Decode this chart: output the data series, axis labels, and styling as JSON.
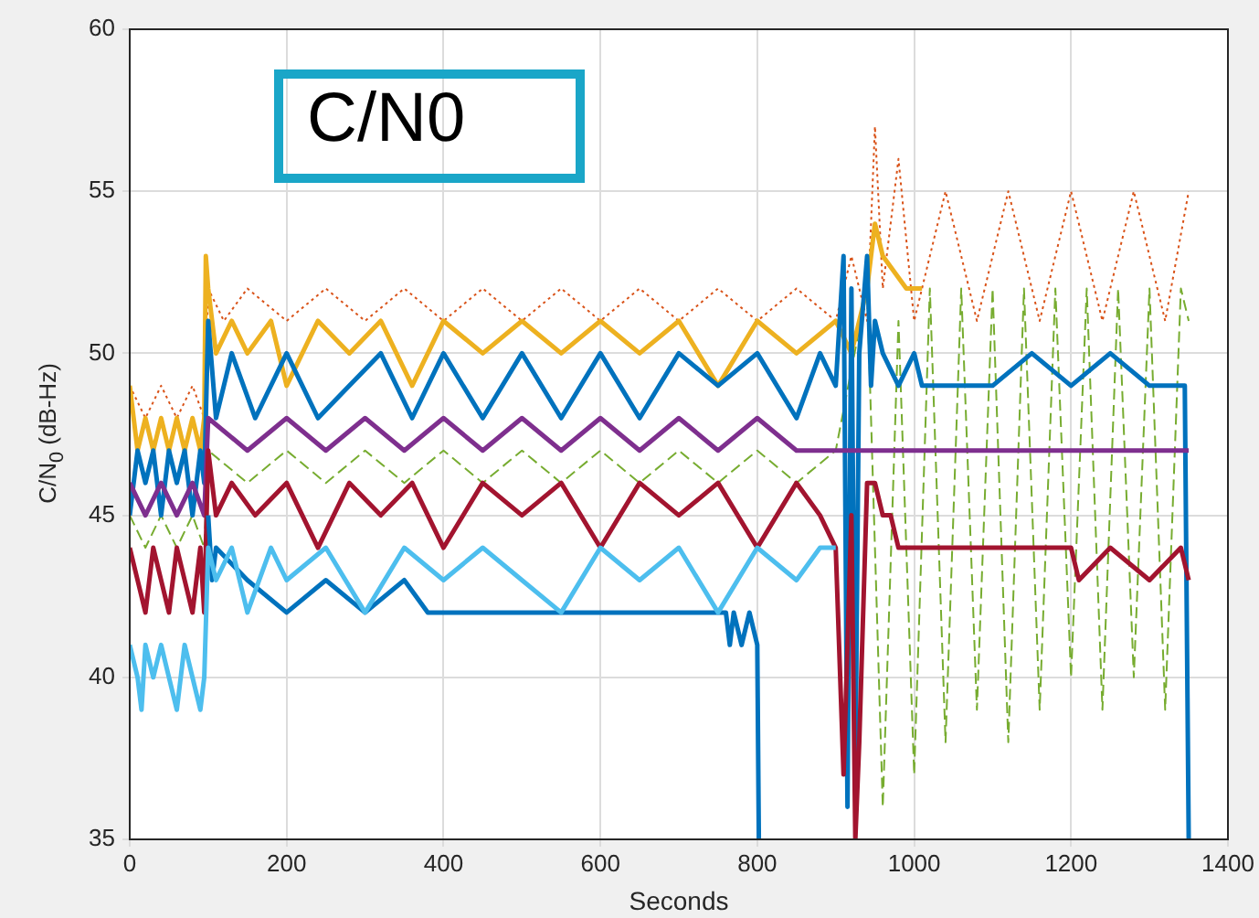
{
  "chart_data": {
    "type": "line",
    "xlabel": "Seconds",
    "ylabel": "C/N$_{0}$ (dB-Hz)",
    "annotations": [
      "C/N0"
    ],
    "xlim": [
      0,
      1400
    ],
    "xticks": [
      0,
      200,
      400,
      600,
      800,
      1000,
      1200,
      1400
    ],
    "ylim": [
      35,
      60
    ],
    "yticks": [
      35,
      40,
      45,
      50,
      55,
      60
    ],
    "grid": true,
    "legend": false,
    "marker": "none",
    "series": [
      {
        "color": "#4dbeee",
        "line_style": "solid",
        "x": [
          0,
          10,
          15,
          20,
          30,
          40,
          50,
          60,
          70,
          80,
          90,
          95,
          100,
          110,
          130,
          150,
          180,
          200,
          250,
          300,
          350,
          400,
          450,
          500,
          550,
          600,
          650,
          700,
          750,
          800,
          850,
          880,
          900
        ],
        "values": [
          41,
          40,
          39,
          41,
          40,
          41,
          40,
          39,
          41,
          40,
          39,
          40,
          44,
          43,
          44,
          42,
          44,
          43,
          44,
          42,
          44,
          43,
          44,
          43,
          42,
          44,
          43,
          44,
          42,
          44,
          43,
          44,
          44
        ]
      },
      {
        "color": "#0072bd",
        "line_style": "solid",
        "x": [
          100,
          105,
          110,
          150,
          200,
          250,
          300,
          350,
          380,
          400,
          600,
          760,
          765,
          770,
          780,
          790,
          800,
          802
        ],
        "values": [
          45,
          43,
          44,
          43,
          42,
          43,
          42,
          43,
          42,
          42,
          42,
          42,
          41,
          42,
          41,
          42,
          41,
          35
        ]
      },
      {
        "color": "#a2142f",
        "line_style": "solid",
        "x": [
          0,
          10,
          20,
          30,
          40,
          50,
          60,
          70,
          80,
          90,
          95,
          100,
          110,
          130,
          160,
          200,
          240,
          280,
          320,
          360,
          400,
          450,
          500,
          550,
          600,
          650,
          700,
          750,
          800,
          850,
          880,
          900,
          910,
          920,
          925,
          930,
          940,
          950,
          960,
          970,
          980,
          1200,
          1210,
          1250,
          1300,
          1340,
          1350
        ],
        "values": [
          44,
          43,
          42,
          44,
          43,
          42,
          44,
          43,
          42,
          44,
          42,
          47,
          45,
          46,
          45,
          46,
          44,
          46,
          45,
          46,
          44,
          46,
          45,
          46,
          44,
          46,
          45,
          46,
          44,
          46,
          45,
          44,
          37,
          45,
          35,
          38,
          46,
          46,
          45,
          45,
          44,
          44,
          43,
          44,
          43,
          44,
          43
        ]
      },
      {
        "color": "#7e2f8e",
        "line_style": "solid",
        "x": [
          0,
          20,
          40,
          60,
          80,
          95,
          100,
          150,
          200,
          250,
          300,
          350,
          400,
          450,
          500,
          550,
          600,
          650,
          700,
          750,
          800,
          850,
          900,
          950,
          1100,
          1350
        ],
        "values": [
          46,
          45,
          46,
          45,
          46,
          45,
          48,
          47,
          48,
          47,
          48,
          47,
          48,
          47,
          48,
          47,
          48,
          47,
          48,
          47,
          48,
          47,
          47,
          47,
          47,
          47
        ]
      },
      {
        "color": "#0072bd",
        "line_style": "solid",
        "x": [
          0,
          10,
          20,
          30,
          40,
          50,
          60,
          70,
          80,
          90,
          95,
          100,
          110,
          130,
          160,
          200,
          240,
          280,
          320,
          360,
          400,
          450,
          500,
          550,
          600,
          650,
          700,
          750,
          800,
          850,
          880,
          900,
          910,
          915,
          920,
          925,
          930,
          940,
          945,
          950,
          960,
          980,
          1000,
          1010,
          1050,
          1100,
          1150,
          1200,
          1250,
          1300,
          1345,
          1350
        ],
        "values": [
          45,
          47,
          46,
          47,
          45,
          47,
          46,
          47,
          45,
          47,
          46,
          51,
          48,
          50,
          48,
          50,
          48,
          49,
          50,
          48,
          50,
          48,
          50,
          48,
          50,
          48,
          50,
          49,
          50,
          48,
          50,
          49,
          53,
          36,
          52,
          37,
          50,
          53,
          49,
          51,
          50,
          49,
          50,
          49,
          49,
          49,
          50,
          49,
          50,
          49,
          49,
          35
        ]
      },
      {
        "color": "#edb120",
        "line_style": "solid",
        "x": [
          0,
          10,
          20,
          30,
          40,
          50,
          60,
          70,
          80,
          90,
          95,
          97,
          100,
          110,
          130,
          150,
          180,
          200,
          240,
          280,
          320,
          360,
          400,
          450,
          500,
          550,
          600,
          650,
          700,
          750,
          800,
          850,
          900,
          920,
          940,
          950,
          960,
          990,
          1010
        ],
        "values": [
          49,
          47,
          48,
          47,
          48,
          47,
          48,
          47,
          48,
          47,
          48,
          53,
          52,
          50,
          51,
          50,
          51,
          49,
          51,
          50,
          51,
          49,
          51,
          50,
          51,
          50,
          51,
          50,
          51,
          49,
          51,
          50,
          51,
          50,
          52,
          54,
          53,
          52,
          52
        ]
      },
      {
        "color": "#d95319",
        "line_style": "dotted",
        "x": [
          0,
          20,
          40,
          60,
          80,
          95,
          100,
          120,
          150,
          200,
          250,
          300,
          350,
          400,
          450,
          500,
          550,
          600,
          650,
          700,
          750,
          800,
          850,
          900,
          920,
          940,
          950,
          960,
          980,
          1000,
          1040,
          1080,
          1120,
          1160,
          1200,
          1240,
          1280,
          1320,
          1350
        ],
        "values": [
          49,
          48,
          49,
          48,
          49,
          48,
          52,
          51,
          52,
          51,
          52,
          51,
          52,
          51,
          52,
          51,
          52,
          51,
          52,
          51,
          52,
          51,
          52,
          51,
          53,
          51,
          57,
          52,
          56,
          51,
          55,
          51,
          55,
          51,
          55,
          51,
          55,
          51,
          55
        ]
      },
      {
        "color": "#77ac30",
        "line_style": "dashed",
        "x": [
          0,
          20,
          40,
          60,
          80,
          95,
          100,
          150,
          200,
          250,
          300,
          350,
          400,
          450,
          500,
          550,
          600,
          650,
          700,
          750,
          800,
          850,
          900,
          940,
          960,
          980,
          1000,
          1020,
          1040,
          1060,
          1080,
          1100,
          1120,
          1140,
          1160,
          1180,
          1200,
          1220,
          1240,
          1260,
          1280,
          1300,
          1320,
          1340,
          1350
        ],
        "values": [
          45,
          44,
          45,
          44,
          45,
          44,
          47,
          46,
          47,
          46,
          47,
          46,
          47,
          46,
          47,
          46,
          47,
          46,
          47,
          46,
          47,
          46,
          47,
          52,
          36,
          51,
          37,
          52,
          38,
          52,
          39,
          52,
          38,
          52,
          39,
          52,
          40,
          52,
          39,
          52,
          40,
          52,
          39,
          52,
          51
        ]
      }
    ]
  }
}
